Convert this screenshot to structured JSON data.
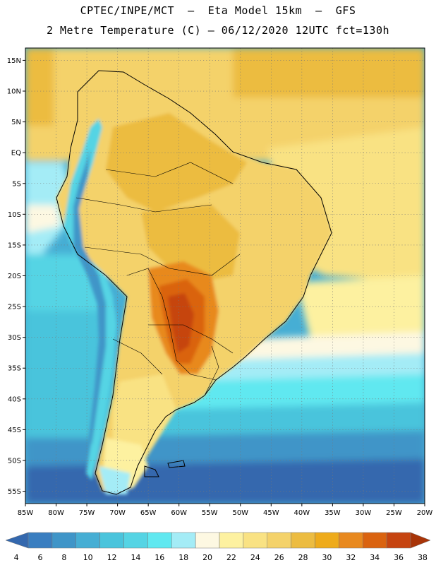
{
  "header": {
    "line1": "CPTEC/INPE/MCT  –  Eta Model 15km  –  GFS",
    "line2": "2 Metre Temperature (C) – 06/12/2020 12UTC fct=130h"
  },
  "map": {
    "type": "heatmap",
    "variable": "2 Metre Temperature",
    "units": "C",
    "lon_range": [
      -85,
      -20
    ],
    "lat_range": [
      -57,
      17
    ],
    "lat_ticks": [
      {
        "value": 15,
        "label": "15N"
      },
      {
        "value": 10,
        "label": "10N"
      },
      {
        "value": 5,
        "label": "5N"
      },
      {
        "value": 0,
        "label": "EQ"
      },
      {
        "value": -5,
        "label": "5S"
      },
      {
        "value": -10,
        "label": "10S"
      },
      {
        "value": -15,
        "label": "15S"
      },
      {
        "value": -20,
        "label": "20S"
      },
      {
        "value": -25,
        "label": "25S"
      },
      {
        "value": -30,
        "label": "30S"
      },
      {
        "value": -35,
        "label": "35S"
      },
      {
        "value": -40,
        "label": "40S"
      },
      {
        "value": -45,
        "label": "45S"
      },
      {
        "value": -50,
        "label": "50S"
      },
      {
        "value": -55,
        "label": "55S"
      }
    ],
    "lon_ticks": [
      {
        "value": -85,
        "label": "85W"
      },
      {
        "value": -80,
        "label": "80W"
      },
      {
        "value": -75,
        "label": "75W"
      },
      {
        "value": -70,
        "label": "70W"
      },
      {
        "value": -65,
        "label": "65W"
      },
      {
        "value": -60,
        "label": "60W"
      },
      {
        "value": -55,
        "label": "55W"
      },
      {
        "value": -50,
        "label": "50W"
      },
      {
        "value": -45,
        "label": "45W"
      },
      {
        "value": -40,
        "label": "40W"
      },
      {
        "value": -35,
        "label": "35W"
      },
      {
        "value": -30,
        "label": "30W"
      },
      {
        "value": -25,
        "label": "25W"
      },
      {
        "value": -20,
        "label": "20W"
      }
    ],
    "grid": true
  },
  "colorbar": {
    "levels": [
      "4",
      "6",
      "8",
      "10",
      "12",
      "14",
      "16",
      "18",
      "20",
      "22",
      "24",
      "26",
      "28",
      "30",
      "32",
      "34",
      "36",
      "38"
    ],
    "colors": [
      "#3468ae",
      "#3a7ec0",
      "#3f95c8",
      "#46aed4",
      "#4ac4dc",
      "#55d4e4",
      "#60e8f0",
      "#a4ecf6",
      "#fdf8e2",
      "#fdf1a0",
      "#f9e283",
      "#f4d26a",
      "#ecbc41",
      "#eeab1b",
      "#e8891f",
      "#da6310",
      "#c64410",
      "#a83408"
    ]
  }
}
